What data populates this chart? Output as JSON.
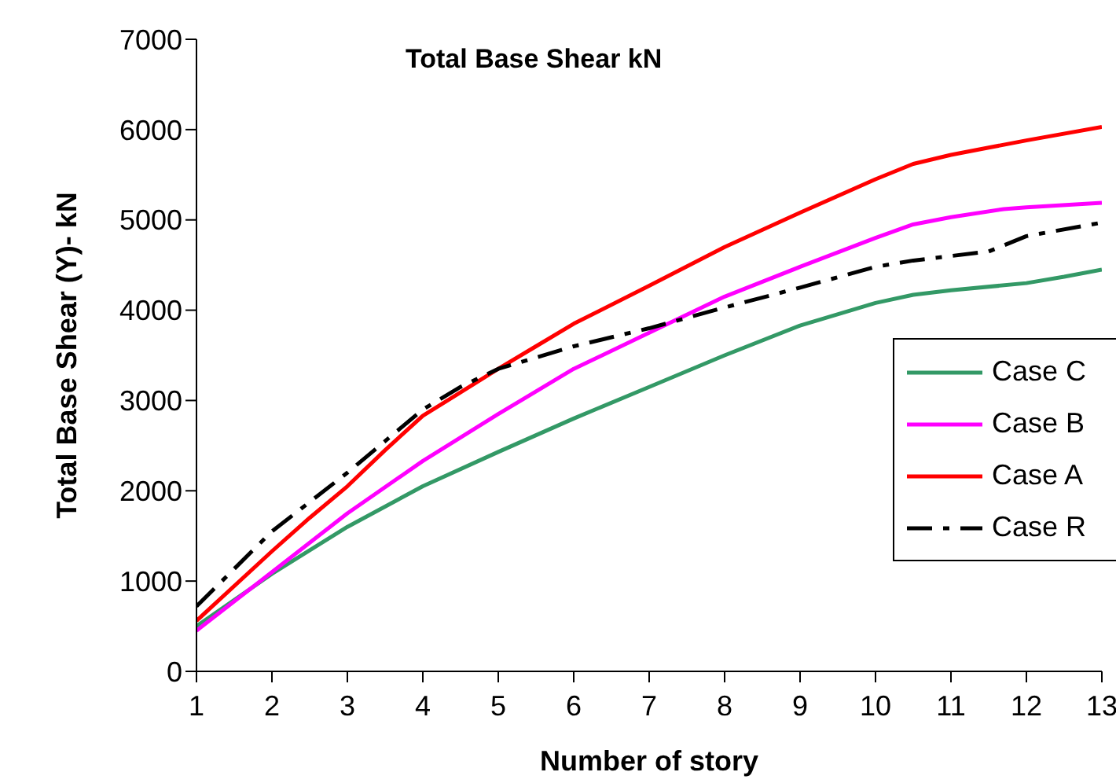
{
  "chart_data": {
    "type": "line",
    "title": "Total Base Shear kN",
    "xlabel": "Number of story",
    "ylabel": "Total Base Shear (Y)- kN",
    "xlim": [
      1,
      13
    ],
    "xticks": [
      1,
      2,
      3,
      4,
      5,
      6,
      7,
      8,
      9,
      10,
      11,
      12,
      13
    ],
    "ylim": [
      0,
      7000
    ],
    "yticks": [
      0,
      1000,
      2000,
      3000,
      4000,
      5000,
      6000,
      7000
    ],
    "grid": false,
    "legend": "right",
    "marker": "none",
    "series": [
      {
        "name": "Case C",
        "color": "#339966",
        "line_style": "solid",
        "x": [
          1,
          2,
          3,
          4,
          5,
          6,
          7,
          8,
          9,
          10,
          10.5,
          11,
          12,
          12.5,
          13
        ],
        "values": [
          500,
          1080,
          1600,
          2050,
          2430,
          2800,
          3150,
          3500,
          3830,
          4080,
          4170,
          4220,
          4300,
          4370,
          4450
        ]
      },
      {
        "name": "Case B",
        "color": "#ff00ff",
        "line_style": "solid",
        "x": [
          1,
          2,
          3,
          4,
          5,
          6,
          7,
          8,
          9,
          10,
          10.5,
          11,
          11.7,
          12,
          13
        ],
        "values": [
          450,
          1100,
          1750,
          2330,
          2850,
          3350,
          3750,
          4150,
          4480,
          4800,
          4950,
          5030,
          5120,
          5140,
          5190
        ]
      },
      {
        "name": "Case A",
        "color": "#ff0000",
        "line_style": "solid",
        "x": [
          1,
          2,
          2.5,
          3,
          3.5,
          4,
          5,
          5.5,
          6,
          7,
          8,
          9,
          10,
          10.5,
          11,
          11.5,
          12,
          13
        ],
        "values": [
          560,
          1330,
          1700,
          2050,
          2450,
          2830,
          3350,
          3600,
          3850,
          4270,
          4700,
          5080,
          5450,
          5620,
          5720,
          5800,
          5880,
          6030
        ]
      },
      {
        "name": "Case R",
        "color": "#000000",
        "line_style": "dashed",
        "x": [
          1,
          2,
          3,
          4,
          4.5,
          5,
          6,
          7,
          8,
          9,
          10,
          10.5,
          11,
          11.5,
          12,
          13
        ],
        "values": [
          720,
          1550,
          2200,
          2900,
          3150,
          3350,
          3600,
          3800,
          4030,
          4250,
          4480,
          4550,
          4600,
          4650,
          4820,
          4970
        ]
      }
    ]
  }
}
